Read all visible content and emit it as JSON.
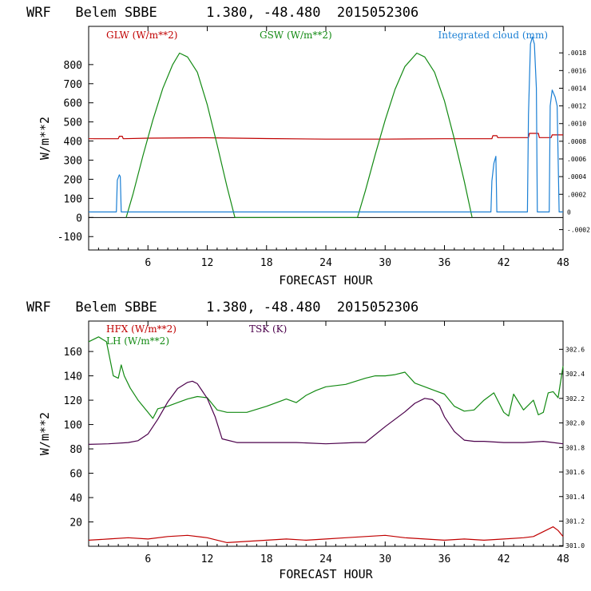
{
  "chart_data": [
    {
      "type": "line",
      "title": "WRF   Belem SBBE      1.380, -48.480  2015052306",
      "xlabel": "FORECAST HOUR",
      "ylabel": "W/m**2",
      "xlim": [
        0,
        48
      ],
      "ylim": [
        -170,
        1000
      ],
      "x_ticks": [
        6,
        12,
        18,
        24,
        30,
        36,
        42,
        48
      ],
      "y_ticks": [
        -100,
        0,
        100,
        200,
        300,
        400,
        500,
        600,
        700,
        800
      ],
      "right_axis": {
        "label": "Integrated cloud (mm)",
        "ylim": [
          -0.00043,
          0.0021
        ],
        "ticks": [
          {
            "v": -0.0002,
            "t": "-.0002"
          },
          {
            "v": 0,
            "t": "0"
          },
          {
            "v": 0.0002,
            "t": ".0002"
          },
          {
            "v": 0.0004,
            "t": ".0004"
          },
          {
            "v": 0.0006,
            "t": ".0006"
          },
          {
            "v": 0.0008,
            "t": ".0008"
          },
          {
            "v": 0.001,
            "t": ".0010"
          },
          {
            "v": 0.0012,
            "t": ".0012"
          },
          {
            "v": 0.0014,
            "t": ".0014"
          },
          {
            "v": 0.0016,
            "t": ".0016"
          },
          {
            "v": 0.0018,
            "t": ".0018"
          }
        ]
      },
      "series": [
        {
          "name": "GLW (W/m**2)",
          "color": "#c00000",
          "axis": "left",
          "x": [
            0,
            3,
            3.1,
            3.4,
            3.5,
            6,
            12,
            18,
            24,
            30,
            36,
            40.8,
            40.9,
            41.3,
            41.4,
            44.5,
            44.6,
            45.5,
            45.6,
            46.8,
            46.9,
            48
          ],
          "y": [
            412,
            412,
            425,
            425,
            412,
            415,
            417,
            413,
            410,
            410,
            412,
            412,
            428,
            428,
            418,
            418,
            440,
            440,
            418,
            418,
            432,
            432
          ]
        },
        {
          "name": "GSW (W/m**2)",
          "color": "#138a13",
          "axis": "left",
          "x": [
            3.8,
            4.5,
            5.5,
            6.5,
            7.5,
            8.5,
            9.2,
            10,
            11,
            12,
            13,
            14,
            14.8,
            27.2,
            28,
            29,
            30,
            31,
            32,
            33.2,
            34,
            35,
            36,
            37,
            38,
            38.8
          ],
          "y": [
            0,
            125,
            325,
            510,
            675,
            800,
            860,
            840,
            760,
            590,
            380,
            160,
            0,
            0,
            140,
            330,
            510,
            670,
            790,
            860,
            840,
            760,
            610,
            410,
            190,
            0
          ]
        },
        {
          "name": "Integrated cloud (mm)",
          "color": "#1a7fd4",
          "axis": "right",
          "x": [
            0,
            2.8,
            2.9,
            3.1,
            3.2,
            3.3,
            40.7,
            40.8,
            41.0,
            41.2,
            41.3,
            44.4,
            44.5,
            44.7,
            44.9,
            45.1,
            45.3,
            45.4,
            46.6,
            46.7,
            46.9,
            47.2,
            47.4,
            47.6,
            48
          ],
          "y": [
            0,
            0,
            0.00036,
            0.00042,
            0.0004,
            0,
            0,
            0.00035,
            0.00055,
            0.00063,
            0,
            0,
            0.0011,
            0.0019,
            0.00198,
            0.0019,
            0.0014,
            0,
            0,
            0.0012,
            0.00138,
            0.0013,
            0.0012,
            0,
            0
          ]
        }
      ],
      "legend": [
        "GLW (W/m**2)",
        "GSW (W/m**2)",
        "Integrated cloud (mm)"
      ]
    },
    {
      "type": "line",
      "title": "WRF   Belem SBBE      1.380, -48.480  2015052306",
      "xlabel": "FORECAST HOUR",
      "ylabel": "W/m**2",
      "xlim": [
        0,
        48
      ],
      "ylim": [
        0,
        185
      ],
      "x_ticks": [
        6,
        12,
        18,
        24,
        30,
        36,
        42,
        48
      ],
      "y_ticks": [
        20,
        40,
        60,
        80,
        100,
        120,
        140,
        160
      ],
      "right_axis": {
        "label": "TSK (K)",
        "ylim": [
          300.995,
          302.83
        ],
        "ticks": [
          {
            "v": 301.0,
            "t": "301.0"
          },
          {
            "v": 301.2,
            "t": "301.2"
          },
          {
            "v": 301.4,
            "t": "301.4"
          },
          {
            "v": 301.6,
            "t": "301.6"
          },
          {
            "v": 301.8,
            "t": "301.8"
          },
          {
            "v": 302.0,
            "t": "302.0"
          },
          {
            "v": 302.2,
            "t": "302.2"
          },
          {
            "v": 302.4,
            "t": "302.4"
          },
          {
            "v": 302.6,
            "t": "302.6"
          }
        ]
      },
      "series": [
        {
          "name": "HFX (W/m**2)",
          "color": "#c00000",
          "axis": "left",
          "x": [
            0,
            2,
            4,
            6,
            8,
            10,
            12,
            14,
            16,
            18,
            20,
            22,
            24,
            26,
            28,
            30,
            32,
            34,
            36,
            38,
            40,
            42,
            44,
            45,
            46,
            47,
            47.5,
            48
          ],
          "y": [
            5,
            6,
            7,
            6,
            8,
            9,
            7,
            3,
            4,
            5,
            6,
            5,
            6,
            7,
            8,
            9,
            7,
            6,
            5,
            6,
            5,
            6,
            7,
            8,
            12,
            16,
            13,
            8
          ]
        },
        {
          "name": "LH (W/m**2)",
          "color": "#138a13",
          "axis": "left",
          "x": [
            0,
            1,
            1.8,
            2.5,
            3,
            3.3,
            3.6,
            4.2,
            5,
            6,
            6.5,
            7,
            8,
            9,
            10,
            11,
            12,
            13,
            14,
            16,
            18,
            20,
            21,
            22,
            23,
            24,
            26,
            28,
            29,
            30,
            31,
            32,
            33,
            34,
            35,
            36,
            37,
            38,
            39,
            40,
            41,
            42,
            42.5,
            43,
            44,
            45,
            45.5,
            46,
            46.5,
            47,
            47.5,
            48
          ],
          "y": [
            168,
            172,
            168,
            140,
            138,
            149,
            140,
            130,
            120,
            110,
            105,
            113,
            115,
            118,
            121,
            123,
            122,
            112,
            110,
            110,
            115,
            121,
            118,
            124,
            128,
            131,
            133,
            138,
            140,
            140,
            141,
            143,
            134,
            131,
            128,
            125,
            115,
            111,
            112,
            120,
            126,
            110,
            107,
            125,
            112,
            120,
            108,
            110,
            126,
            127,
            122,
            148
          ]
        },
        {
          "name": "TSK (K)",
          "color": "#4b004b",
          "axis": "right",
          "x": [
            0,
            2,
            4,
            5,
            6,
            7,
            8,
            9,
            10,
            10.5,
            11,
            12,
            12.8,
            13.5,
            15,
            18,
            21,
            24,
            27,
            28,
            30,
            32,
            33,
            34,
            34.8,
            35.5,
            36,
            37,
            38,
            39,
            40,
            42,
            44,
            46,
            47,
            48
          ],
          "y": [
            301.825,
            301.83,
            301.84,
            301.855,
            301.91,
            302.03,
            302.17,
            302.28,
            302.33,
            302.34,
            302.32,
            302.2,
            302.05,
            301.87,
            301.84,
            301.84,
            301.84,
            301.83,
            301.84,
            301.84,
            301.97,
            302.09,
            302.16,
            302.2,
            302.19,
            302.14,
            302.05,
            301.93,
            301.86,
            301.85,
            301.85,
            301.84,
            301.84,
            301.85,
            301.84,
            301.83
          ]
        }
      ],
      "legend": [
        "HFX (W/m**2)",
        "LH (W/m**2)",
        "TSK (K)"
      ]
    }
  ]
}
